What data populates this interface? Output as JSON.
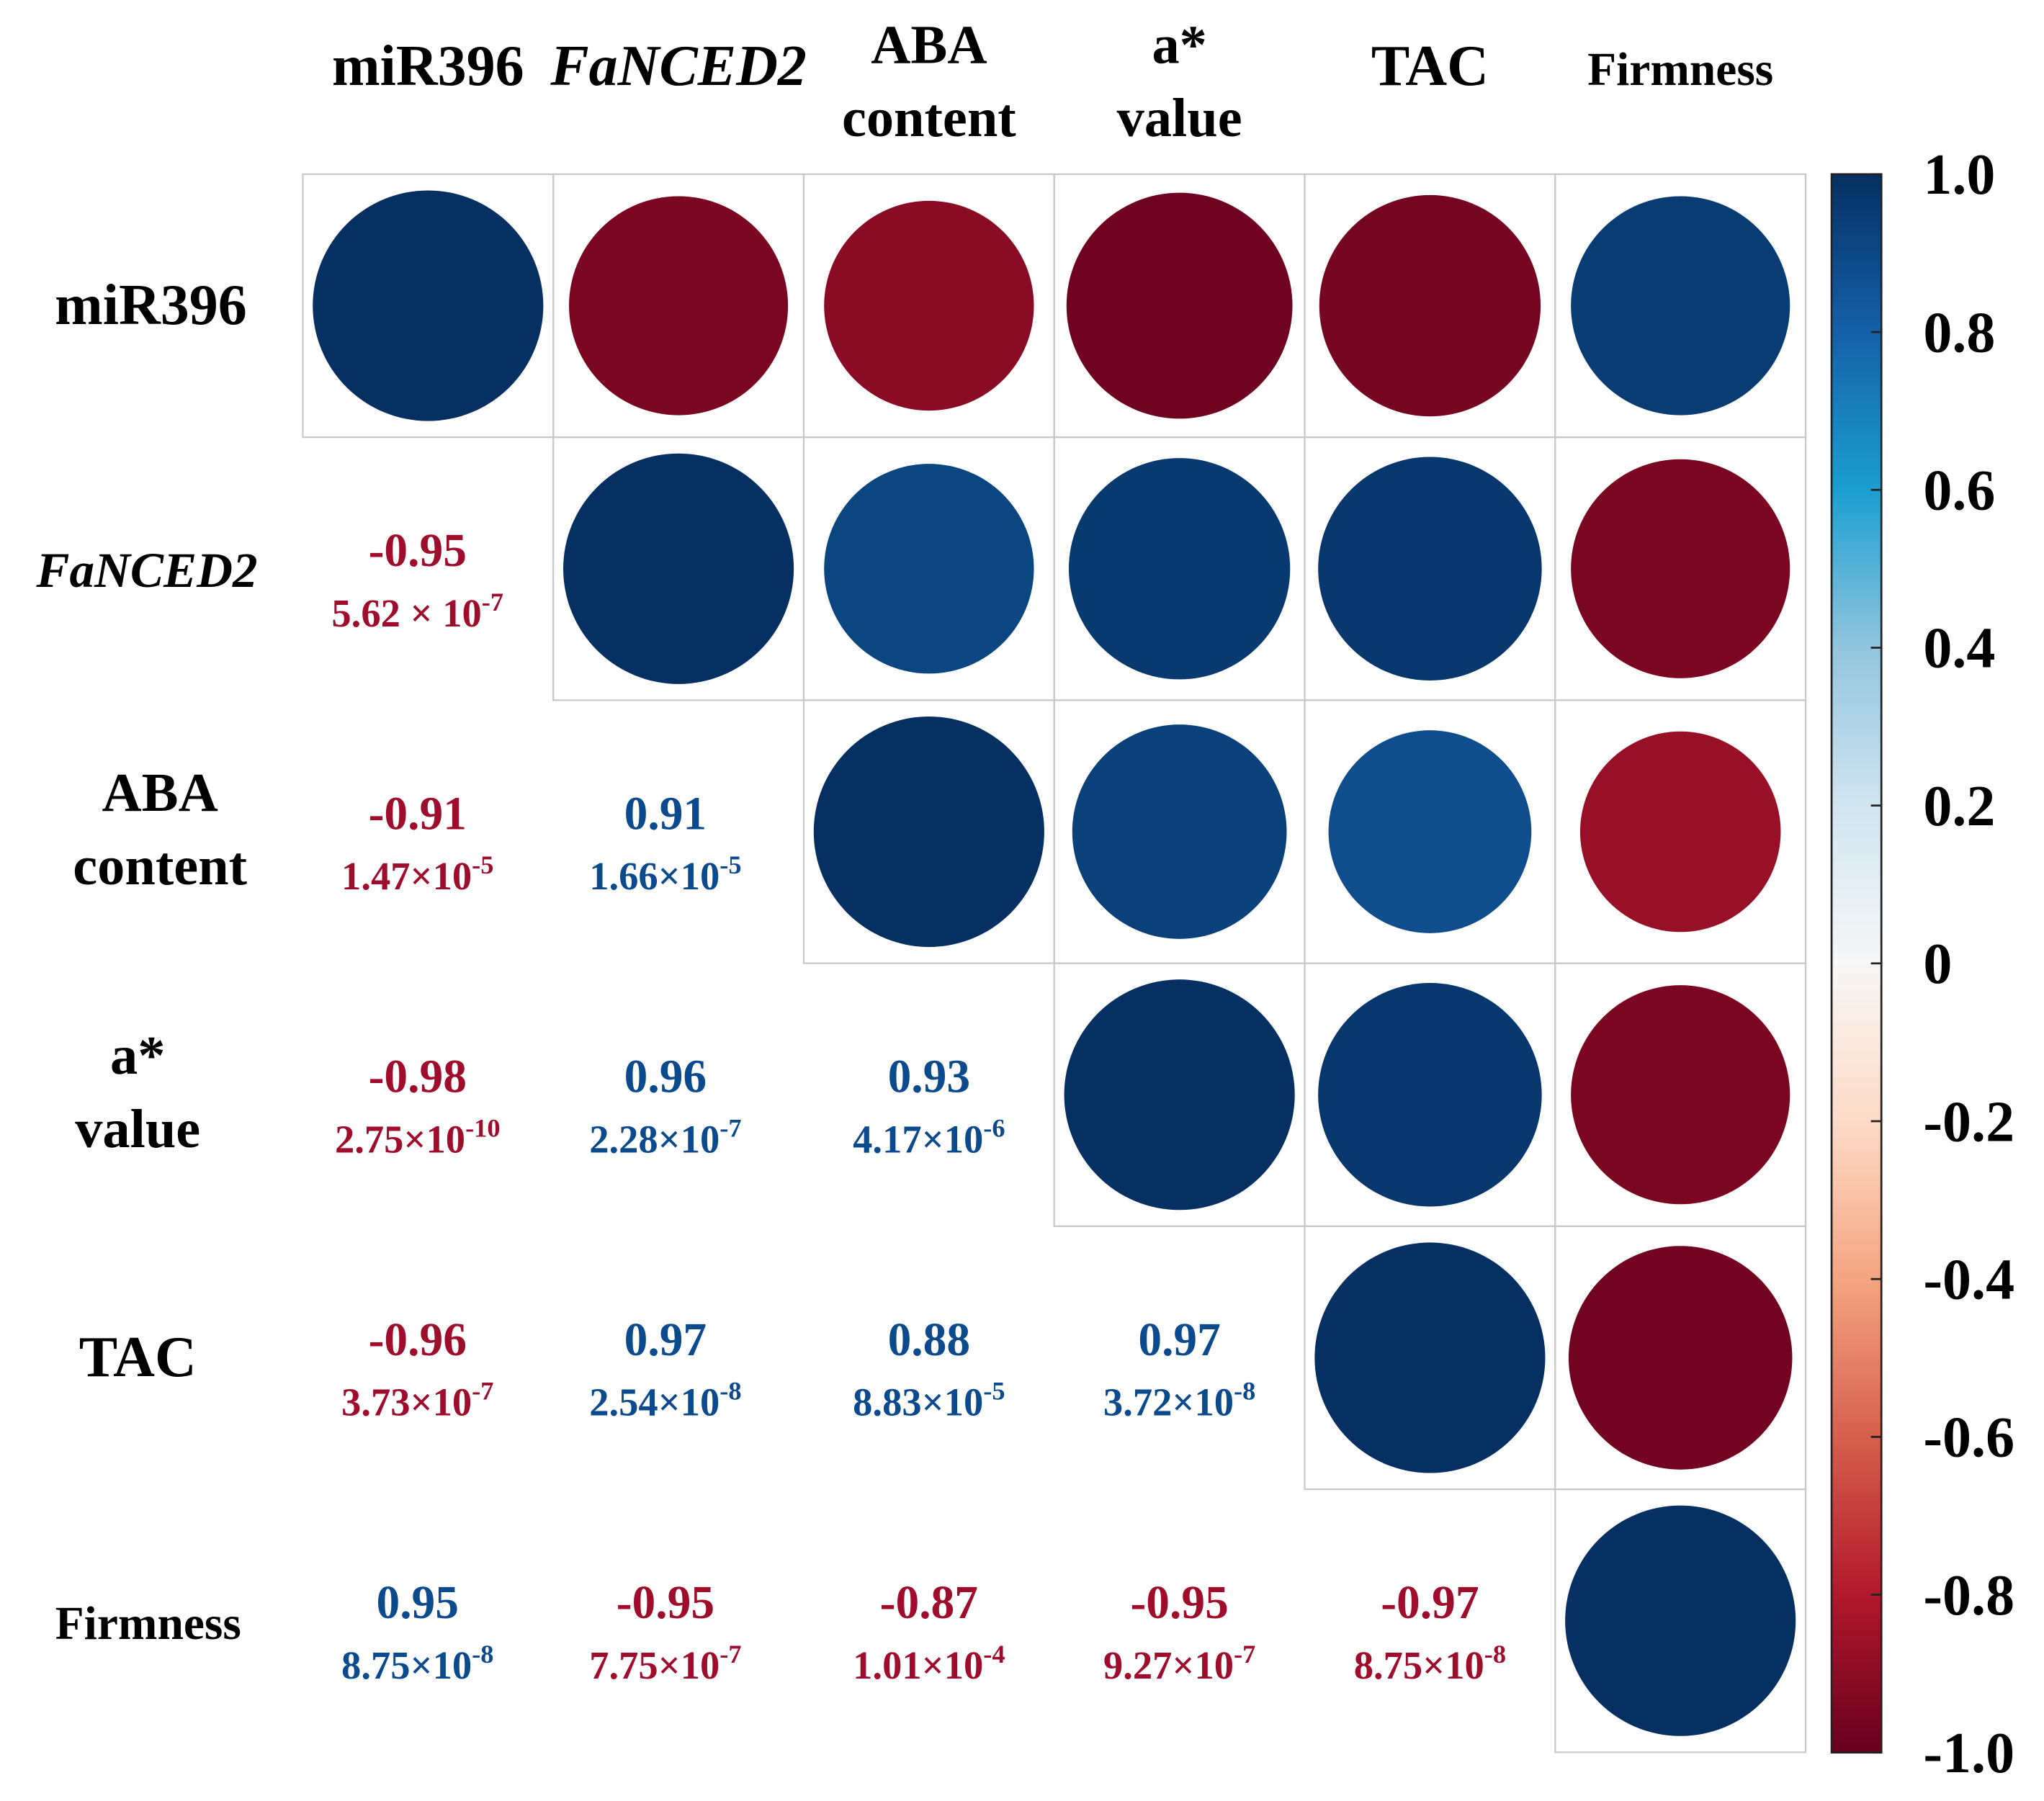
{
  "chart_data": {
    "type": "heatmap",
    "subtype": "correlation-matrix",
    "variables": [
      {
        "label": [
          "miR396"
        ],
        "italic": false
      },
      {
        "label": [
          "FaNCED2"
        ],
        "italic": true
      },
      {
        "label": [
          "ABA",
          "content"
        ],
        "italic": false
      },
      {
        "label": [
          "a*",
          "value"
        ],
        "italic": false
      },
      {
        "label": [
          "TAC"
        ],
        "italic": false
      },
      {
        "label": [
          "Firmness"
        ],
        "italic": false
      }
    ],
    "correlations": [
      [
        1,
        -0.95,
        -0.91,
        -0.98,
        -0.96,
        0.95
      ],
      [
        -0.95,
        1,
        0.91,
        0.96,
        0.97,
        -0.95
      ],
      [
        -0.91,
        0.91,
        1,
        0.93,
        0.88,
        -0.87
      ],
      [
        -0.98,
        0.96,
        0.93,
        1,
        0.97,
        -0.95
      ],
      [
        -0.96,
        0.97,
        0.88,
        0.97,
        1,
        -0.97
      ],
      [
        0.95,
        -0.95,
        -0.87,
        -0.95,
        -0.97,
        1
      ]
    ],
    "lower_labels": [
      {
        "row": 1,
        "col": 0,
        "r": "-0.95",
        "p_base": "5.62 × 10",
        "p_exp": "-7"
      },
      {
        "row": 2,
        "col": 0,
        "r": "-0.91",
        "p_base": "1.47×10",
        "p_exp": "-5"
      },
      {
        "row": 2,
        "col": 1,
        "r": "0.91",
        "p_base": "1.66×10",
        "p_exp": "-5"
      },
      {
        "row": 3,
        "col": 0,
        "r": "-0.98",
        "p_base": "2.75×10",
        "p_exp": "-10"
      },
      {
        "row": 3,
        "col": 1,
        "r": "0.96",
        "p_base": "2.28×10",
        "p_exp": "-7"
      },
      {
        "row": 3,
        "col": 2,
        "r": "0.93",
        "p_base": "4.17×10",
        "p_exp": "-6"
      },
      {
        "row": 4,
        "col": 0,
        "r": "-0.96",
        "p_base": "3.73×10",
        "p_exp": "-7"
      },
      {
        "row": 4,
        "col": 1,
        "r": "0.97",
        "p_base": "2.54×10",
        "p_exp": "-8"
      },
      {
        "row": 4,
        "col": 2,
        "r": "0.88",
        "p_base": "8.83×10",
        "p_exp": "-5"
      },
      {
        "row": 4,
        "col": 3,
        "r": "0.97",
        "p_base": "3.72×10",
        "p_exp": "-8"
      },
      {
        "row": 5,
        "col": 0,
        "r": "0.95",
        "p_base": "8.75×10",
        "p_exp": "-8"
      },
      {
        "row": 5,
        "col": 1,
        "r": "-0.95",
        "p_base": "7.75×10",
        "p_exp": "-7"
      },
      {
        "row": 5,
        "col": 2,
        "r": "-0.87",
        "p_base": "1.01×10",
        "p_exp": "-4"
      },
      {
        "row": 5,
        "col": 3,
        "r": "-0.95",
        "p_base": "9.27×10",
        "p_exp": "-7"
      },
      {
        "row": 5,
        "col": 4,
        "r": "-0.97",
        "p_base": "8.75×10",
        "p_exp": "-8"
      }
    ],
    "colorbar": {
      "range": [
        -1,
        1
      ],
      "ticks": [
        "1.0",
        "0.8",
        "0.6",
        "0.4",
        "0.2",
        "0",
        "-0.2",
        "-0.4",
        "-0.6",
        "-0.8",
        "-1.0"
      ],
      "tick_values": [
        1,
        0.8,
        0.6,
        0.4,
        0.2,
        0,
        -0.2,
        -0.4,
        -0.6,
        -0.8,
        -1
      ],
      "placement": "right"
    },
    "colors": {
      "positive_text": "#0b4a8c",
      "negative_text": "#9e0d2c",
      "stops": [
        "#67001f",
        "#b2182b",
        "#d6604d",
        "#f4a582",
        "#fddbc7",
        "#f7f7f7",
        "#d1e5f0",
        "#92c5de",
        "#1b9fd0",
        "#1560a8",
        "#053061"
      ],
      "grid": "#c8c8c8"
    }
  }
}
